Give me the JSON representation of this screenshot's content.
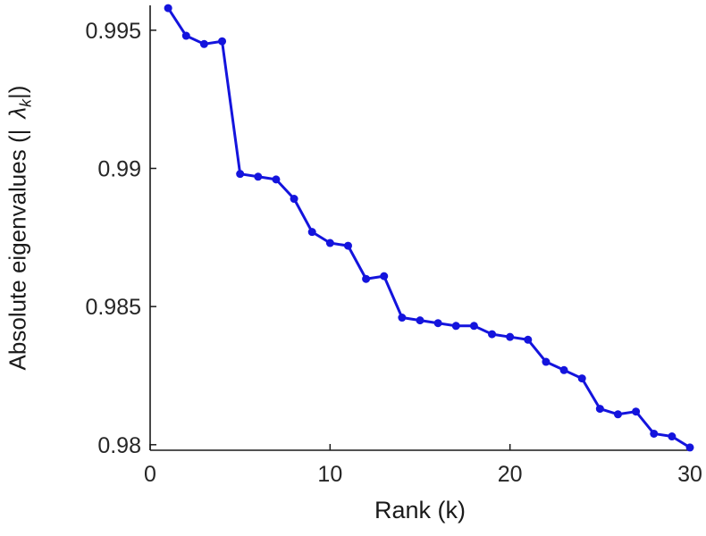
{
  "chart_data": {
    "type": "line",
    "title": "",
    "xlabel": "Rank (k)",
    "ylabel": "Absolute eigenvalues (| λ_k|)",
    "ylabel_parts": {
      "prefix": "Absolute eigenvalues (|",
      "lambda": "λ",
      "subscript": "k",
      "suffix": "|)"
    },
    "x": [
      1,
      2,
      3,
      4,
      5,
      6,
      7,
      8,
      9,
      10,
      11,
      12,
      13,
      14,
      15,
      16,
      17,
      18,
      19,
      20,
      21,
      22,
      23,
      24,
      25,
      26,
      27,
      28,
      29,
      30
    ],
    "values": [
      0.9958,
      0.9948,
      0.9945,
      0.9946,
      0.9898,
      0.9897,
      0.9896,
      0.9889,
      0.9877,
      0.9873,
      0.9872,
      0.986,
      0.9861,
      0.9846,
      0.9845,
      0.9844,
      0.9843,
      0.9843,
      0.984,
      0.9839,
      0.9838,
      0.983,
      0.9827,
      0.9824,
      0.9813,
      0.9811,
      0.9812,
      0.9804,
      0.9803,
      0.9799
    ],
    "xlim": [
      0,
      30
    ],
    "ylim": [
      0.9798,
      0.9959
    ],
    "x_ticks": [
      {
        "value": 0,
        "label": "0"
      },
      {
        "value": 10,
        "label": "10"
      },
      {
        "value": 20,
        "label": "20"
      },
      {
        "value": 30,
        "label": "30"
      }
    ],
    "y_ticks": [
      {
        "value": 0.98,
        "label": "0.98"
      },
      {
        "value": 0.985,
        "label": "0.985"
      },
      {
        "value": 0.99,
        "label": "0.99"
      },
      {
        "value": 0.995,
        "label": "0.995"
      }
    ],
    "grid": false,
    "legend": null,
    "line_color": "#1414dd",
    "marker": "circle",
    "axis_color": "#1a1a1a",
    "tick_label_color": "#262626"
  }
}
